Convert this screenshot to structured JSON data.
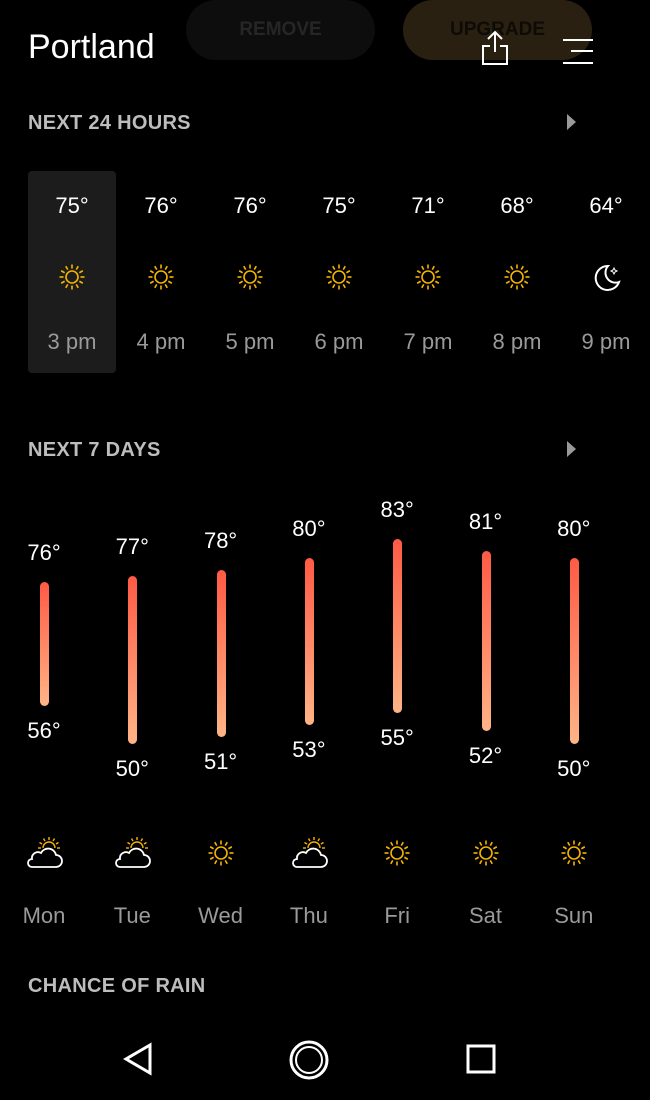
{
  "header": {
    "title": "Portland",
    "remove_label": "REMOVE",
    "upgrade_label": "UPGRADE"
  },
  "hourly": {
    "title": "NEXT 24 HOURS",
    "items": [
      {
        "temp": "75°",
        "time": "3 pm",
        "icon": "sun-icon",
        "selected": true
      },
      {
        "temp": "76°",
        "time": "4 pm",
        "icon": "sun-icon"
      },
      {
        "temp": "76°",
        "time": "5 pm",
        "icon": "sun-icon"
      },
      {
        "temp": "75°",
        "time": "6 pm",
        "icon": "sun-icon"
      },
      {
        "temp": "71°",
        "time": "7 pm",
        "icon": "sun-icon"
      },
      {
        "temp": "68°",
        "time": "8 pm",
        "icon": "sun-icon"
      },
      {
        "temp": "64°",
        "time": "9 pm",
        "icon": "moon-icon"
      }
    ]
  },
  "daily": {
    "title": "NEXT 7 DAYS",
    "items": [
      {
        "day": "Mon",
        "high": 76,
        "low": 56,
        "high_label": "76°",
        "low_label": "56°",
        "icon": "partly-cloudy-icon"
      },
      {
        "day": "Tue",
        "high": 77,
        "low": 50,
        "high_label": "77°",
        "low_label": "50°",
        "icon": "partly-cloudy-icon"
      },
      {
        "day": "Wed",
        "high": 78,
        "low": 51,
        "high_label": "78°",
        "low_label": "51°",
        "icon": "sun-icon"
      },
      {
        "day": "Thu",
        "high": 80,
        "low": 53,
        "high_label": "80°",
        "low_label": "53°",
        "icon": "partly-cloudy-icon"
      },
      {
        "day": "Fri",
        "high": 83,
        "low": 55,
        "high_label": "83°",
        "low_label": "55°",
        "icon": "sun-icon"
      },
      {
        "day": "Sat",
        "high": 81,
        "low": 52,
        "high_label": "81°",
        "low_label": "52°",
        "icon": "sun-icon"
      },
      {
        "day": "Sun",
        "high": 80,
        "low": 50,
        "high_label": "80°",
        "low_label": "50°",
        "icon": "sun-icon"
      }
    ]
  },
  "rain": {
    "title": "CHANCE OF RAIN"
  },
  "colors": {
    "sun": "#f5b400",
    "bar_top": "#ff5a44",
    "bar_bottom": "#ffb487"
  }
}
